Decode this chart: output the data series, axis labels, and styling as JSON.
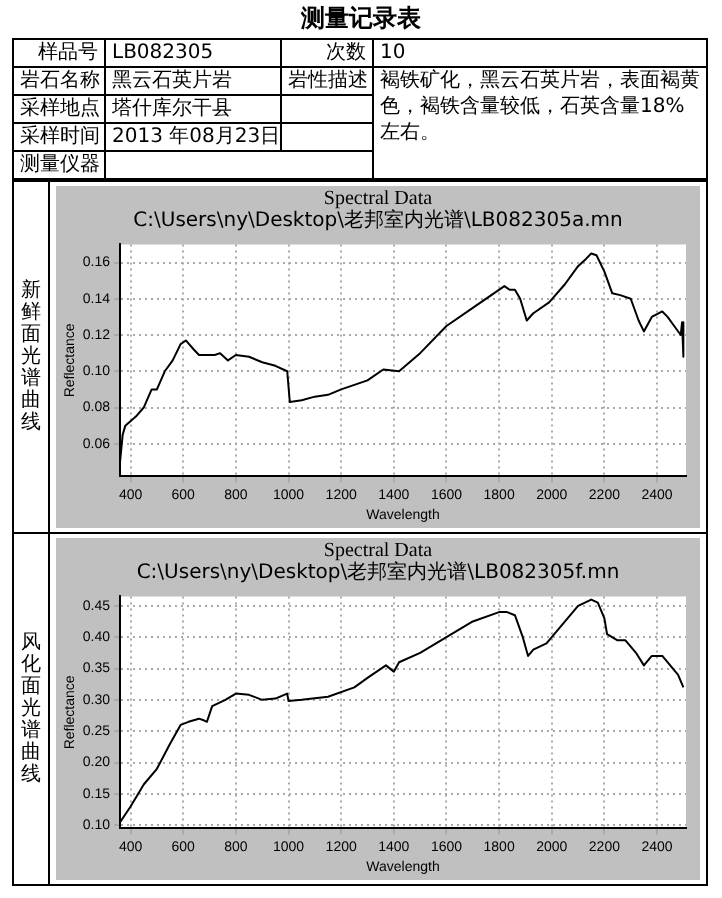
{
  "chart_data": [
    {
      "type": "other",
      "title": "测量记录表",
      "annotations": [
        "样品号",
        "LB082305",
        "次数",
        "10",
        "岩石名称",
        "黑云石英片岩",
        "岩性描述",
        "褐铁矿化，黑云石英片岩，表面褐黄色，褐铁含量较低，石英含量18%左右。",
        "采样地点",
        "塔什库尔干县",
        "采样时间",
        "2013 年08月23日",
        "测量仪器"
      ]
    },
    {
      "type": "line",
      "title": "Spectral Data",
      "subtitle": "C:\\Users\\ny\\Desktop\\老邦室内光谱\\LB082305a.mn",
      "xlabel": "Wavelength",
      "ylabel": "Reflectance",
      "annotations": [
        "新鲜面光谱曲线"
      ],
      "x": [
        360,
        370,
        380,
        420,
        450,
        480,
        500,
        530,
        560,
        590,
        610,
        640,
        660,
        720,
        740,
        770,
        800,
        850,
        900,
        950,
        995,
        1005,
        1050,
        1100,
        1150,
        1200,
        1300,
        1360,
        1420,
        1500,
        1600,
        1700,
        1780,
        1820,
        1840,
        1860,
        1880,
        1905,
        1930,
        1990,
        2050,
        2100,
        2130,
        2150,
        2170,
        2200,
        2230,
        2260,
        2300,
        2330,
        2350,
        2380,
        2420,
        2440,
        2470,
        2490,
        2495,
        2500
      ],
      "series": [
        {
          "color": "#000000",
          "values": [
            0.05,
            0.065,
            0.07,
            0.075,
            0.08,
            0.09,
            0.09,
            0.1,
            0.106,
            0.115,
            0.117,
            0.112,
            0.109,
            0.109,
            0.11,
            0.106,
            0.109,
            0.108,
            0.105,
            0.103,
            0.1,
            0.083,
            0.084,
            0.086,
            0.087,
            0.09,
            0.095,
            0.101,
            0.1,
            0.11,
            0.125,
            0.135,
            0.143,
            0.147,
            0.145,
            0.145,
            0.14,
            0.128,
            0.132,
            0.138,
            0.148,
            0.158,
            0.162,
            0.165,
            0.164,
            0.155,
            0.143,
            0.142,
            0.14,
            0.128,
            0.122,
            0.13,
            0.133,
            0.13,
            0.124,
            0.12,
            0.127,
            0.108
          ]
        }
      ],
      "xlim": [
        360,
        2510
      ],
      "xticks": [
        400,
        600,
        800,
        1000,
        1200,
        1400,
        1600,
        1800,
        2000,
        2200,
        2400
      ],
      "ylim": [
        0.042,
        0.17
      ],
      "yticks": [
        0.06,
        0.08,
        {
          "value": 0.1,
          "label": "0.10"
        },
        0.12,
        0.14,
        0.16
      ],
      "grid": true
    },
    {
      "type": "line",
      "title": "Spectral Data",
      "subtitle": "C:\\Users\\ny\\Desktop\\老邦室内光谱\\LB082305f.mn",
      "xlabel": "Wavelength",
      "ylabel": "Reflectance",
      "annotations": [
        "风化面光谱曲线"
      ],
      "x": [
        360,
        400,
        450,
        500,
        550,
        590,
        620,
        660,
        680,
        690,
        710,
        760,
        800,
        850,
        900,
        950,
        995,
        1000,
        1050,
        1150,
        1250,
        1300,
        1370,
        1400,
        1420,
        1500,
        1600,
        1700,
        1800,
        1830,
        1860,
        1890,
        1910,
        1930,
        1980,
        2020,
        2060,
        2100,
        2150,
        2175,
        2200,
        2210,
        2250,
        2280,
        2320,
        2350,
        2380,
        2420,
        2450,
        2480,
        2500
      ],
      "series": [
        {
          "color": "#000000",
          "values": [
            0.105,
            0.13,
            0.165,
            0.19,
            0.23,
            0.26,
            0.265,
            0.27,
            0.267,
            0.265,
            0.29,
            0.3,
            0.31,
            0.308,
            0.3,
            0.302,
            0.31,
            0.298,
            0.3,
            0.305,
            0.32,
            0.335,
            0.355,
            0.345,
            0.36,
            0.375,
            0.4,
            0.425,
            0.44,
            0.44,
            0.435,
            0.4,
            0.37,
            0.38,
            0.39,
            0.41,
            0.43,
            0.45,
            0.46,
            0.455,
            0.43,
            0.405,
            0.395,
            0.395,
            0.375,
            0.355,
            0.37,
            0.37,
            0.355,
            0.34,
            0.32
          ]
        }
      ],
      "xlim": [
        360,
        2510
      ],
      "xticks": [
        400,
        600,
        800,
        1000,
        1200,
        1400,
        1600,
        1800,
        2000,
        2200,
        2400
      ],
      "ylim": [
        0.095,
        0.465
      ],
      "yticks": [
        {
          "value": 0.1,
          "label": "0.10"
        },
        0.15,
        {
          "value": 0.2,
          "label": "0.20"
        },
        0.25,
        {
          "value": 0.3,
          "label": "0.30"
        },
        0.35,
        {
          "value": 0.4,
          "label": "0.40"
        },
        0.45
      ],
      "grid": true
    }
  ]
}
